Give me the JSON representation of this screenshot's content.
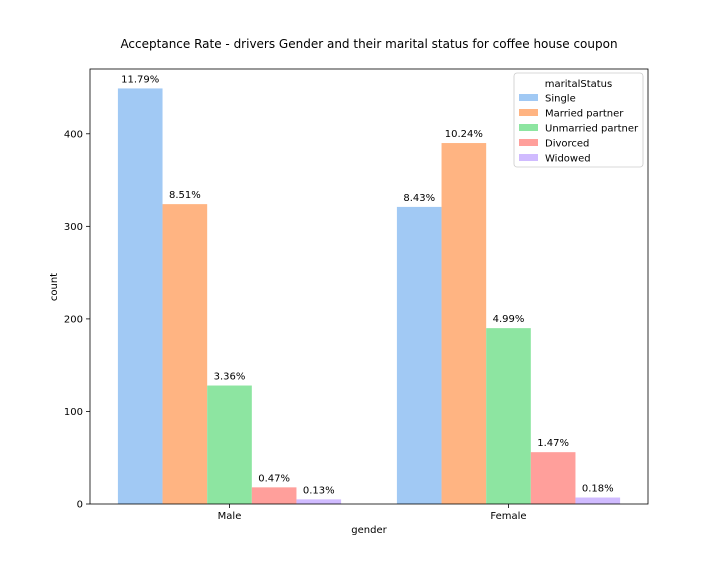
{
  "chart_data": {
    "type": "bar",
    "title": "Acceptance Rate - drivers Gender and their marital status for coffee house coupon",
    "xlabel": "gender",
    "ylabel": "count",
    "categories": [
      "Male",
      "Female"
    ],
    "ylim": [
      0,
      470
    ],
    "yticks": [
      0,
      100,
      200,
      300,
      400
    ],
    "legend": {
      "title": "maritalStatus",
      "placement": "top-right"
    },
    "series": [
      {
        "name": "Single",
        "color": "#a1c9f4",
        "values": [
          449,
          321
        ],
        "labels": [
          "11.79%",
          "8.43%"
        ]
      },
      {
        "name": "Married partner",
        "color": "#ffb482",
        "values": [
          324,
          390
        ],
        "labels": [
          "8.51%",
          "10.24%"
        ]
      },
      {
        "name": "Unmarried partner",
        "color": "#8de5a1",
        "values": [
          128,
          190
        ],
        "labels": [
          "3.36%",
          "4.99%"
        ]
      },
      {
        "name": "Divorced",
        "color": "#ff9f9b",
        "values": [
          18,
          56
        ],
        "labels": [
          "0.47%",
          "1.47%"
        ]
      },
      {
        "name": "Widowed",
        "color": "#d0bbff",
        "values": [
          5,
          7
        ],
        "labels": [
          "0.13%",
          "0.18%"
        ]
      }
    ]
  }
}
